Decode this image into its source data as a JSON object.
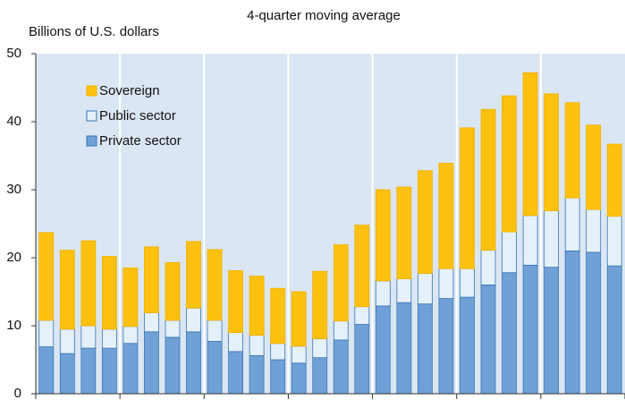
{
  "chart_data": {
    "type": "bar",
    "stacked": true,
    "title": "4-quarter moving average",
    "y_label": "Billions of U.S. dollars",
    "categories": [
      null,
      null,
      null,
      null,
      null,
      null,
      null,
      null,
      null,
      null,
      null,
      null,
      null,
      null,
      null,
      null,
      null,
      null,
      null,
      null,
      null,
      null,
      null,
      null,
      null,
      null,
      null,
      null
    ],
    "series": [
      {
        "name": "Private sector",
        "color": "#6fa0d6",
        "values": [
          6.9,
          5.9,
          6.7,
          6.7,
          7.4,
          9.1,
          8.3,
          9.1,
          7.7,
          6.2,
          5.6,
          5.0,
          4.5,
          5.3,
          7.9,
          10.2,
          12.9,
          13.4,
          13.2,
          14.0,
          14.2,
          16.0,
          17.8,
          18.9,
          18.6,
          21.0,
          20.8,
          18.8
        ]
      },
      {
        "name": "Public sector",
        "color": "#e4f0fa",
        "values": [
          3.9,
          3.6,
          3.3,
          2.8,
          2.5,
          2.8,
          2.5,
          3.5,
          3.1,
          2.8,
          3.0,
          2.4,
          2.5,
          2.8,
          2.8,
          2.6,
          3.7,
          3.5,
          4.5,
          4.4,
          4.2,
          5.1,
          6.0,
          7.3,
          8.3,
          7.8,
          6.3,
          7.3
        ]
      },
      {
        "name": "Sovereign",
        "color": "#fcc10e",
        "values": [
          12.9,
          11.6,
          12.5,
          10.7,
          8.6,
          9.7,
          8.5,
          9.8,
          10.4,
          9.1,
          8.7,
          8.1,
          8.0,
          9.9,
          11.2,
          12.0,
          13.4,
          13.5,
          15.1,
          15.5,
          20.7,
          20.7,
          20.0,
          21.0,
          17.2,
          14.0,
          12.4,
          10.6
        ]
      }
    ],
    "ylim": [
      0,
      50
    ],
    "yticks": [
      0,
      10,
      20,
      30,
      40,
      50
    ],
    "legend": "upper left"
  }
}
